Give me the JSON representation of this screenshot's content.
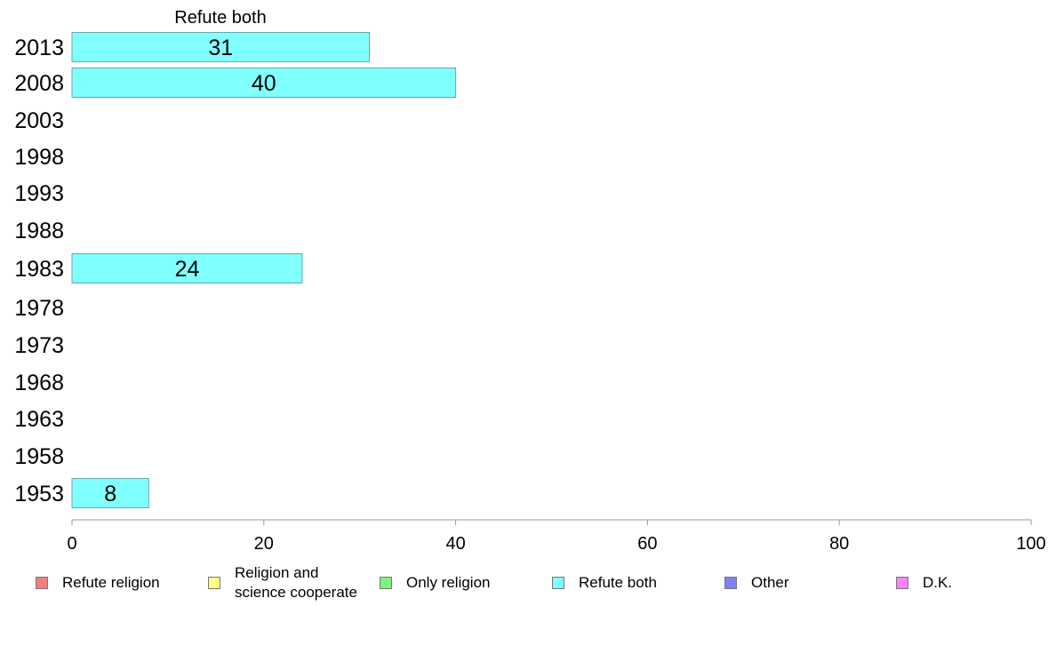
{
  "chart_data": {
    "type": "bar",
    "orientation": "horizontal",
    "title": "Refute both",
    "categories": [
      "2013",
      "2008",
      "2003",
      "1998",
      "1993",
      "1988",
      "1983",
      "1978",
      "1973",
      "1968",
      "1963",
      "1958",
      "1953"
    ],
    "series": [
      {
        "name": "Refute both",
        "color": "#80ffff",
        "values": [
          31,
          40,
          null,
          null,
          null,
          null,
          24,
          null,
          null,
          null,
          null,
          null,
          8
        ]
      }
    ],
    "value_labels": [
      "31",
      "40",
      "",
      "",
      "",
      "",
      "24",
      "",
      "",
      "",
      "",
      "",
      "8"
    ],
    "xlim": [
      0,
      100
    ],
    "xticks": [
      "0",
      "20",
      "40",
      "60",
      "80",
      "100"
    ],
    "legend": {
      "placement": "bottom",
      "items": [
        {
          "label": "Refute religion",
          "color": "#f08080"
        },
        {
          "label": "Religion and\nscience cooperate",
          "color": "#ffff80"
        },
        {
          "label": "Only religion",
          "color": "#80f080"
        },
        {
          "label": "Refute both",
          "color": "#80ffff"
        },
        {
          "label": "Other",
          "color": "#8080f0"
        },
        {
          "label": "D.K.",
          "color": "#ff80ff"
        }
      ]
    }
  }
}
